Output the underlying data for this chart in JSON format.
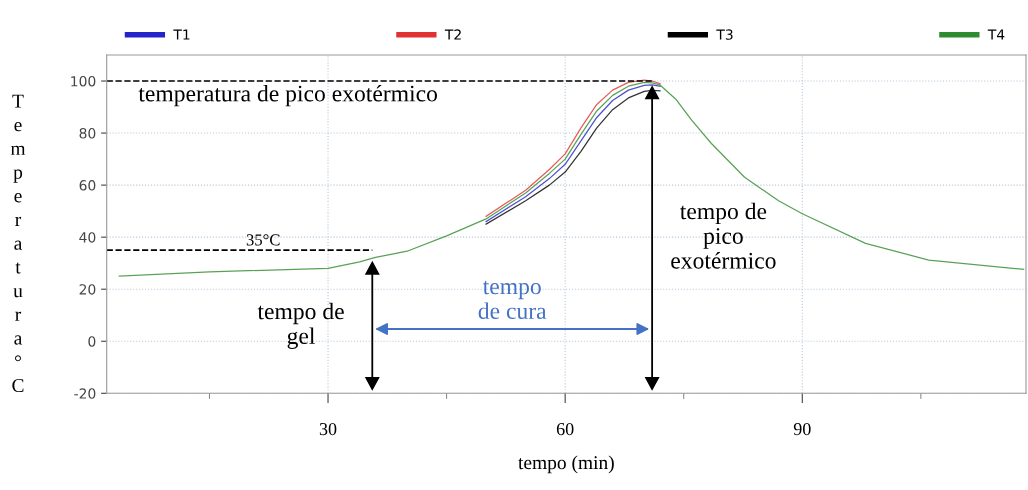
{
  "chart_data": {
    "type": "line",
    "xlabel": "tempo (min)",
    "ylabel": "Temperatura°C",
    "series": [
      {
        "name": "T1",
        "color": "#2424c8",
        "x": [
          50,
          55,
          58,
          60,
          62,
          64,
          66,
          68,
          70,
          71,
          72
        ],
        "values": [
          46,
          55.5,
          62.5,
          68,
          77,
          86,
          92.5,
          96.5,
          98.3,
          98.5,
          98
        ]
      },
      {
        "name": "T2",
        "color": "#e03232",
        "x": [
          50,
          55,
          58,
          60,
          62,
          64,
          66,
          68,
          70,
          71,
          72
        ],
        "values": [
          48,
          58,
          66,
          72,
          82,
          91,
          96.5,
          99.5,
          100.3,
          100,
          99
        ]
      },
      {
        "name": "T3",
        "color": "#000000",
        "x": [
          50,
          55,
          58,
          60,
          62,
          64,
          66,
          68,
          70,
          71,
          72
        ],
        "values": [
          45,
          54,
          60,
          65,
          73,
          82,
          89,
          93.5,
          96,
          96.4,
          96.2
        ]
      },
      {
        "name": "T4",
        "color": "#2e8b2e",
        "x": [
          3.6,
          15,
          30,
          34,
          36,
          40,
          45,
          50,
          55,
          58,
          60,
          62,
          64,
          66,
          68,
          70,
          71,
          72,
          74,
          76,
          78.5,
          82.7,
          87,
          90,
          98,
          106,
          118
        ],
        "values": [
          25.0,
          26.7,
          28.0,
          30.5,
          32.2,
          34.6,
          40.5,
          47,
          57,
          64.5,
          70,
          79.5,
          88.5,
          94.5,
          98,
          99.5,
          99.3,
          98.5,
          93,
          85,
          76,
          63,
          54,
          49,
          37.6,
          31.2,
          27.6
        ]
      }
    ],
    "xlim": [
      2,
      118.3
    ],
    "ylim": [
      -20,
      110
    ],
    "xticks": [
      {
        "value": 15,
        "label": null
      },
      30,
      {
        "value": 45,
        "label": null
      },
      60,
      {
        "value": 75,
        "label": null
      },
      90,
      {
        "value": 105,
        "label": null
      }
    ],
    "yticks": [
      -20,
      0,
      20,
      40,
      60,
      80,
      100
    ],
    "grid": true,
    "legend": "top",
    "line_style": "solid",
    "marker": "none",
    "ref_lines": [
      {
        "axis": "y",
        "value": 100,
        "label": "temperatura de pico exotérmico",
        "color": "#000000",
        "line_style": "dashed"
      },
      {
        "axis": "y",
        "value": 35,
        "label": "35°C",
        "color": "#000000",
        "line_style": "dashed"
      },
      {
        "axis": "x",
        "value": 35.6,
        "label": "tempo de\ngel",
        "color": "#000000",
        "line_style": "solid"
      },
      {
        "axis": "x",
        "value": 71,
        "label": "tempo de\npico\nexotérmico",
        "color": "#000000",
        "line_style": "solid"
      }
    ],
    "annotations": [
      "tempo\nde cura"
    ]
  }
}
